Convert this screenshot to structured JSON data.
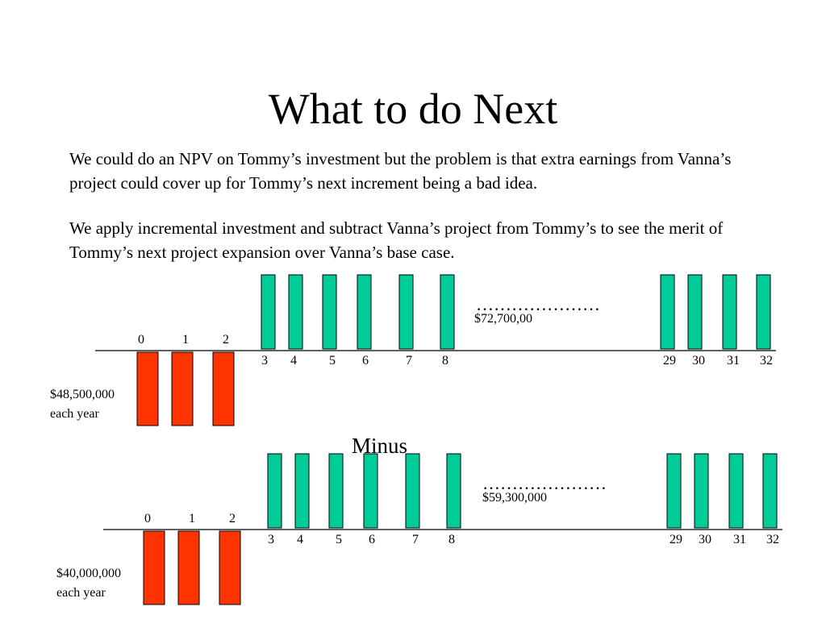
{
  "slide": {
    "title": "What to do Next",
    "paragraph_1": "We could do an NPV on Tommy’s investment but the problem is that extra earnings from Vanna’s project could cover up for Tommy’s next increment being a bad idea.",
    "paragraph_2": "We apply incremental investment and subtract Vanna’s project from Tommy’s to see the merit of Tommy’s next project expansion over Vanna’s base case.",
    "minus_label": "Minus"
  },
  "colors": {
    "inflow": "#00cc99",
    "outflow": "#ff3300",
    "axis": "#000000"
  },
  "chart_data": [
    {
      "type": "cash-flow diagram",
      "outflow_periods": [
        "0",
        "1",
        "2"
      ],
      "outflow_label": [
        "$48,500,000",
        "each year"
      ],
      "inflow_periods": [
        "3",
        "4",
        "5",
        "6",
        "7",
        "8",
        "29",
        "30",
        "31",
        "32"
      ],
      "inflow_label": "$72,700,00",
      "ellipsis": "…………………"
    },
    {
      "type": "cash-flow diagram",
      "outflow_periods": [
        "0",
        "1",
        "2"
      ],
      "outflow_label": [
        "$40,000,000",
        "each year"
      ],
      "inflow_periods": [
        "3",
        "4",
        "5",
        "6",
        "7",
        "8",
        "29",
        "30",
        "31",
        "32"
      ],
      "inflow_label": "$59,300,000",
      "ellipsis": "…………………"
    }
  ]
}
